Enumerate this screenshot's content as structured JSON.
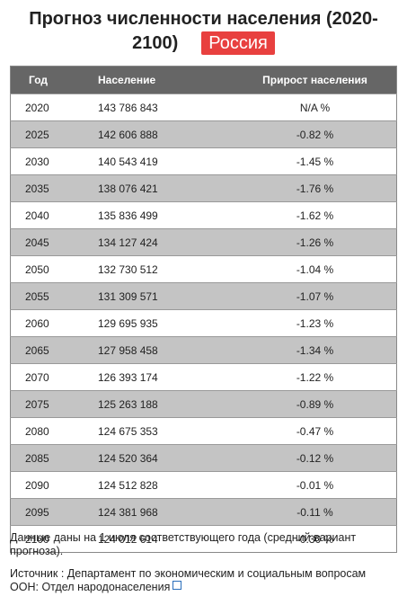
{
  "header": {
    "title": "Прогноз численности населения (2020-2100)",
    "badge": "Россия"
  },
  "table": {
    "columns": [
      "Год",
      "Население",
      "Прирост населения"
    ],
    "rows": [
      [
        "2020",
        "143 786 843",
        "N/A %"
      ],
      [
        "2025",
        "142 606 888",
        "-0.82 %"
      ],
      [
        "2030",
        "140 543 419",
        "-1.45 %"
      ],
      [
        "2035",
        "138 076 421",
        "-1.76 %"
      ],
      [
        "2040",
        "135 836 499",
        "-1.62 %"
      ],
      [
        "2045",
        "134 127 424",
        "-1.26 %"
      ],
      [
        "2050",
        "132 730 512",
        "-1.04 %"
      ],
      [
        "2055",
        "131 309 571",
        "-1.07 %"
      ],
      [
        "2060",
        "129 695 935",
        "-1.23 %"
      ],
      [
        "2065",
        "127 958 458",
        "-1.34 %"
      ],
      [
        "2070",
        "126 393 174",
        "-1.22 %"
      ],
      [
        "2075",
        "125 263 188",
        "-0.89 %"
      ],
      [
        "2080",
        "124 675 353",
        "-0.47 %"
      ],
      [
        "2085",
        "124 520 364",
        "-0.12 %"
      ],
      [
        "2090",
        "124 512 828",
        "-0.01 %"
      ],
      [
        "2095",
        "124 381 968",
        "-0.11 %"
      ],
      [
        "2100",
        "124 012 614",
        "-0.30 %"
      ]
    ]
  },
  "footer": {
    "note": "Данные даны на 1 июля соответствующего года (средний вариант прогноза).",
    "source": "Источник : Департамент по экономическим и социальным вопросам ООН:",
    "source_link": "Отдел народонаселения"
  }
}
